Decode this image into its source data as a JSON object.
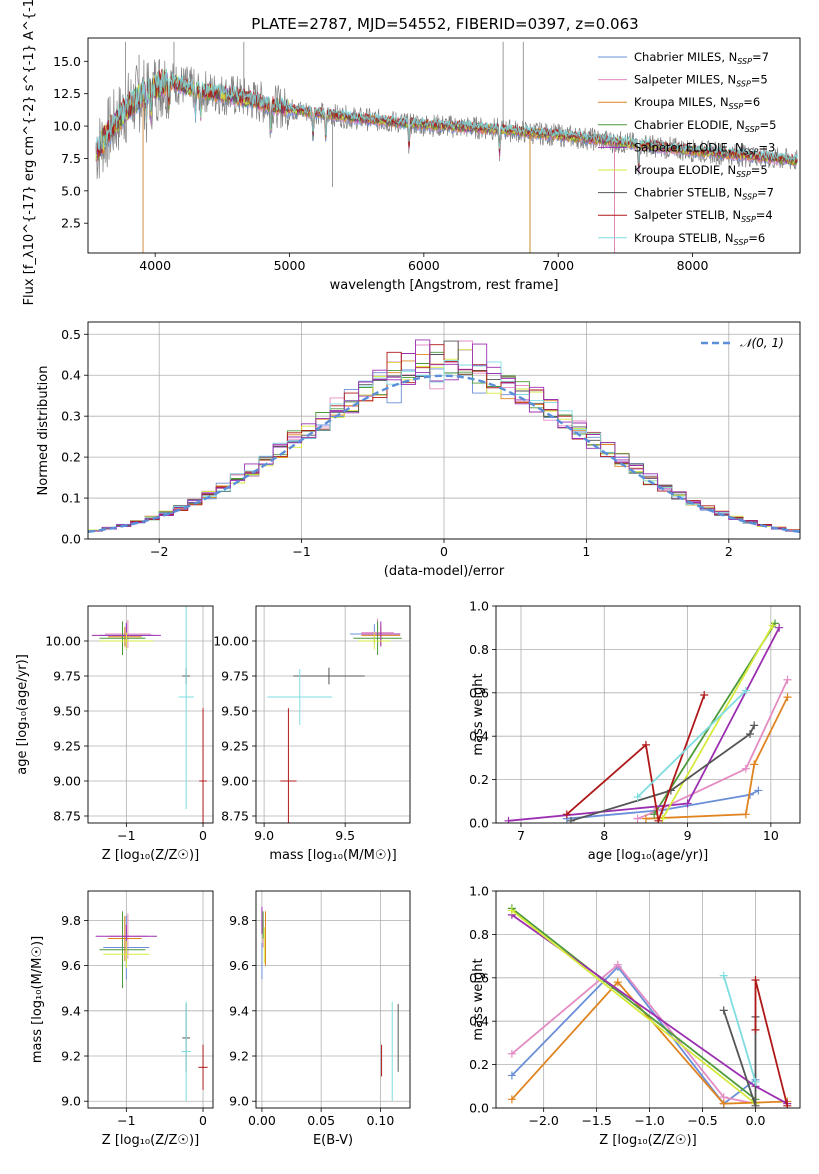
{
  "title": "PLATE=2787, MJD=54552, FIBERID=0397, z=0.063",
  "series": [
    {
      "name": "Chabrier MILES",
      "nssp": "7",
      "color": "#6a8fd8"
    },
    {
      "name": "Salpeter MILES",
      "nssp": "5",
      "color": "#e38cc4"
    },
    {
      "name": "Kroupa MILES",
      "nssp": "6",
      "color": "#e0841f"
    },
    {
      "name": "Chabrier ELODIE",
      "nssp": "5",
      "color": "#4c9a3a"
    },
    {
      "name": "Salpeter ELODIE",
      "nssp": "3",
      "color": "#9b2fb0"
    },
    {
      "name": "Kroupa ELODIE",
      "nssp": "5",
      "color": "#d6ea3c"
    },
    {
      "name": "Chabrier STELIB",
      "nssp": "7",
      "color": "#555555"
    },
    {
      "name": "Salpeter STELIB",
      "nssp": "4",
      "color": "#b01818"
    },
    {
      "name": "Kroupa STELIB",
      "nssp": "6",
      "color": "#7fdde0"
    }
  ],
  "chart_data": [
    {
      "id": "spectrum",
      "type": "line",
      "xlabel": "wavelength [Angstrom, rest frame]",
      "ylabel": "Flux [f_λ10^{-17} erg cm^{-2} s^{-1} A^{-1}]",
      "xlim": [
        3500,
        8800
      ],
      "ylim": [
        0.2,
        16.8
      ],
      "xticks": [
        4000,
        5000,
        6000,
        7000,
        8000
      ],
      "yticks": [
        2.5,
        5.0,
        7.5,
        10.0,
        12.5,
        15.0
      ],
      "continuum": {
        "x": [
          3550,
          3650,
          3800,
          3950,
          4100,
          4300,
          4600,
          5000,
          5500,
          6000,
          6500,
          7000,
          7500,
          8000,
          8500,
          8800
        ],
        "y": [
          7.8,
          9.5,
          11.5,
          12.8,
          13.5,
          12.8,
          12.3,
          11.3,
          10.6,
          10.1,
          9.8,
          9.3,
          8.7,
          8.1,
          7.6,
          7.3
        ]
      }
    },
    {
      "id": "residuals",
      "type": "step",
      "xlabel": "(data-model)/error",
      "ylabel": "Normed distribution",
      "xlim": [
        -2.5,
        2.5
      ],
      "ylim": [
        0,
        0.53
      ],
      "xticks": [
        -2,
        -1,
        0,
        1,
        2
      ],
      "yticks": [
        0.0,
        0.1,
        0.2,
        0.3,
        0.4,
        0.5
      ],
      "legend": "𝒩(0, 1)",
      "reference_color": "#5b8fd9"
    },
    {
      "id": "age_vs_Z",
      "type": "errorbar",
      "xlabel": "Z [log₁₀(Z/Z☉)]",
      "ylabel": "age  [log₁₀(age/yr)]",
      "xlim": [
        -1.5,
        0.13
      ],
      "ylim": [
        8.7,
        10.25
      ],
      "xticks": [
        -1,
        0
      ],
      "yticks": [
        8.75,
        9.0,
        9.25,
        9.5,
        9.75,
        10.0
      ],
      "points": [
        {
          "s": 0,
          "x": -1.0,
          "y": 10.04,
          "xe": 0.35,
          "ye": 0.08
        },
        {
          "s": 1,
          "x": -0.98,
          "y": 10.05,
          "xe": 0.3,
          "ye": 0.1
        },
        {
          "s": 2,
          "x": -1.02,
          "y": 10.03,
          "xe": 0.22,
          "ye": 0.07
        },
        {
          "s": 3,
          "x": -1.05,
          "y": 10.02,
          "xe": 0.3,
          "ye": 0.12
        },
        {
          "s": 4,
          "x": -1.0,
          "y": 10.04,
          "xe": 0.45,
          "ye": 0.09
        },
        {
          "s": 5,
          "x": -1.0,
          "y": 10.0,
          "xe": 0.35,
          "ye": 0.06
        },
        {
          "s": 6,
          "x": -0.22,
          "y": 9.75,
          "xe": 0.05,
          "ye": 0.06
        },
        {
          "s": 7,
          "x": 0.0,
          "y": 9.0,
          "xe": 0.05,
          "ye": 0.52
        },
        {
          "s": 8,
          "x": -0.22,
          "y": 9.6,
          "xe": 0.1,
          "ye": 0.8
        }
      ]
    },
    {
      "id": "age_vs_mass",
      "type": "errorbar",
      "xlabel": "mass [log₁₀(M/M☉)]",
      "ylabel": "",
      "xlim": [
        8.95,
        9.9
      ],
      "ylim": [
        8.7,
        10.25
      ],
      "xticks": [
        9.0,
        9.5
      ],
      "yticks": [
        8.75,
        9.0,
        9.25,
        9.5,
        9.75,
        10.0
      ],
      "points": [
        {
          "s": 0,
          "x": 9.68,
          "y": 10.05,
          "xe": 0.15,
          "ye": 0.07
        },
        {
          "s": 1,
          "x": 9.7,
          "y": 10.06,
          "xe": 0.1,
          "ye": 0.1
        },
        {
          "s": 2,
          "x": 9.72,
          "y": 10.04,
          "xe": 0.12,
          "ye": 0.07
        },
        {
          "s": 3,
          "x": 9.7,
          "y": 10.02,
          "xe": 0.15,
          "ye": 0.12
        },
        {
          "s": 4,
          "x": 9.72,
          "y": 10.05,
          "xe": 0.12,
          "ye": 0.09
        },
        {
          "s": 5,
          "x": 9.68,
          "y": 10.0,
          "xe": 0.1,
          "ye": 0.06
        },
        {
          "s": 6,
          "x": 9.4,
          "y": 9.75,
          "xe": 0.22,
          "ye": 0.06
        },
        {
          "s": 7,
          "x": 9.15,
          "y": 9.0,
          "xe": 0.05,
          "ye": 0.52
        },
        {
          "s": 8,
          "x": 9.22,
          "y": 9.6,
          "xe": 0.2,
          "ye": 0.2
        }
      ]
    },
    {
      "id": "weight_vs_age",
      "type": "line",
      "xlabel": "age  [log₁₀(age/yr)]",
      "ylabel": "mass weight",
      "xlim": [
        6.7,
        10.35
      ],
      "ylim": [
        0,
        1.0
      ],
      "xticks": [
        7,
        8,
        9,
        10
      ],
      "yticks": [
        0.0,
        0.2,
        0.4,
        0.6,
        0.8,
        1.0
      ],
      "lines": [
        {
          "s": 0,
          "x": [
            7.55,
            8.7,
            9.75,
            9.85
          ],
          "y": [
            0.02,
            0.06,
            0.13,
            0.15
          ]
        },
        {
          "s": 1,
          "x": [
            8.4,
            8.6,
            9.7,
            10.2
          ],
          "y": [
            0.02,
            0.05,
            0.25,
            0.66
          ]
        },
        {
          "s": 2,
          "x": [
            8.5,
            9.7,
            9.8,
            10.2
          ],
          "y": [
            0.02,
            0.04,
            0.27,
            0.58
          ]
        },
        {
          "s": 3,
          "x": [
            8.6,
            10.05
          ],
          "y": [
            0.04,
            0.92
          ]
        },
        {
          "s": 4,
          "x": [
            6.85,
            9.0,
            10.1
          ],
          "y": [
            0.01,
            0.09,
            0.9
          ]
        },
        {
          "s": 5,
          "x": [
            8.7,
            10.02
          ],
          "y": [
            0.02,
            0.91
          ]
        },
        {
          "s": 6,
          "x": [
            7.6,
            8.8,
            9.75,
            9.8
          ],
          "y": [
            0.01,
            0.15,
            0.41,
            0.45
          ]
        },
        {
          "s": 7,
          "x": [
            7.55,
            8.5,
            8.65,
            9.2
          ],
          "y": [
            0.04,
            0.36,
            0.01,
            0.59
          ]
        },
        {
          "s": 8,
          "x": [
            8.4,
            9.7
          ],
          "y": [
            0.12,
            0.61
          ]
        }
      ]
    },
    {
      "id": "mass_vs_Z",
      "type": "errorbar",
      "xlabel": "Z [log₁₀(Z/Z☉)]",
      "ylabel": "mass [log₁₀(M/M☉)]",
      "xlim": [
        -1.5,
        0.13
      ],
      "ylim": [
        8.97,
        9.93
      ],
      "xticks": [
        -1,
        0
      ],
      "yticks": [
        9.0,
        9.2,
        9.4,
        9.6,
        9.8
      ],
      "points": [
        {
          "s": 0,
          "x": -1.0,
          "y": 9.68,
          "xe": 0.3,
          "ye": 0.14
        },
        {
          "s": 1,
          "x": -0.98,
          "y": 9.73,
          "xe": 0.25,
          "ye": 0.1
        },
        {
          "s": 2,
          "x": -1.02,
          "y": 9.72,
          "xe": 0.22,
          "ye": 0.1
        },
        {
          "s": 3,
          "x": -1.05,
          "y": 9.67,
          "xe": 0.3,
          "ye": 0.17
        },
        {
          "s": 4,
          "x": -1.0,
          "y": 9.73,
          "xe": 0.4,
          "ye": 0.05
        },
        {
          "s": 5,
          "x": -1.0,
          "y": 9.65,
          "xe": 0.3,
          "ye": 0.06
        },
        {
          "s": 6,
          "x": -0.22,
          "y": 9.28,
          "xe": 0.05,
          "ye": 0.15
        },
        {
          "s": 7,
          "x": 0.0,
          "y": 9.15,
          "xe": 0.06,
          "ye": 0.1
        },
        {
          "s": 8,
          "x": -0.22,
          "y": 9.22,
          "xe": 0.06,
          "ye": 0.22
        }
      ]
    },
    {
      "id": "mass_vs_EBV",
      "type": "errorbar",
      "xlabel": "E(B-V)",
      "ylabel": "",
      "xlim": [
        -0.005,
        0.125
      ],
      "ylim": [
        8.97,
        9.93
      ],
      "xticks": [
        0.0,
        0.05,
        0.1
      ],
      "yticks": [
        9.0,
        9.2,
        9.4,
        9.6,
        9.8
      ],
      "points": [
        {
          "s": 0,
          "x": 0.0,
          "y": 9.62,
          "xe": 0,
          "ye": 0.08
        },
        {
          "s": 1,
          "x": 0.001,
          "y": 9.74,
          "xe": 0,
          "ye": 0.06
        },
        {
          "s": 2,
          "x": 0.003,
          "y": 9.72,
          "xe": 0,
          "ye": 0.12
        },
        {
          "s": 3,
          "x": 0.001,
          "y": 9.78,
          "xe": 0,
          "ye": 0.06
        },
        {
          "s": 4,
          "x": 0.0,
          "y": 9.8,
          "xe": 0,
          "ye": 0.06
        },
        {
          "s": 5,
          "x": 0.002,
          "y": 9.69,
          "xe": 0,
          "ye": 0.08
        },
        {
          "s": 6,
          "x": 0.115,
          "y": 9.28,
          "xe": 0,
          "ye": 0.15
        },
        {
          "s": 7,
          "x": 0.101,
          "y": 9.18,
          "xe": 0,
          "ye": 0.07
        },
        {
          "s": 8,
          "x": 0.11,
          "y": 9.22,
          "xe": 0,
          "ye": 0.22
        }
      ]
    },
    {
      "id": "weight_vs_Z",
      "type": "line",
      "xlabel": "Z [log₁₀(Z/Z☉)]",
      "ylabel": "mass weight",
      "xlim": [
        -2.45,
        0.42
      ],
      "ylim": [
        0,
        1.0
      ],
      "xticks": [
        -2.0,
        -1.5,
        -1.0,
        -0.5,
        0.0
      ],
      "yticks": [
        0.0,
        0.2,
        0.4,
        0.6,
        0.8,
        1.0
      ],
      "lines": [
        {
          "s": 0,
          "x": [
            -2.3,
            -1.3,
            -0.3,
            0.0
          ],
          "y": [
            0.15,
            0.65,
            0.02,
            0.13
          ]
        },
        {
          "s": 1,
          "x": [
            -2.3,
            -1.3,
            -0.3,
            0.0
          ],
          "y": [
            0.25,
            0.66,
            0.05,
            0.02
          ]
        },
        {
          "s": 2,
          "x": [
            -2.3,
            -1.3,
            -0.3,
            0.3
          ],
          "y": [
            0.04,
            0.58,
            0.02,
            0.03
          ]
        },
        {
          "s": 3,
          "x": [
            -2.3,
            0.0
          ],
          "y": [
            0.92,
            0.04
          ]
        },
        {
          "s": 4,
          "x": [
            -2.3,
            0.0,
            0.3
          ],
          "y": [
            0.89,
            0.1,
            0.02
          ]
        },
        {
          "s": 5,
          "x": [
            -2.3,
            0.0
          ],
          "y": [
            0.91,
            0.02
          ]
        },
        {
          "s": 6,
          "x": [
            -0.3,
            0.0,
            0.0
          ],
          "y": [
            0.45,
            0.01,
            0.42
          ]
        },
        {
          "s": 7,
          "x": [
            0.0,
            0.0,
            0.3
          ],
          "y": [
            0.36,
            0.59,
            0.01
          ]
        },
        {
          "s": 8,
          "x": [
            -0.3,
            0.0
          ],
          "y": [
            0.61,
            0.12
          ]
        }
      ]
    }
  ]
}
